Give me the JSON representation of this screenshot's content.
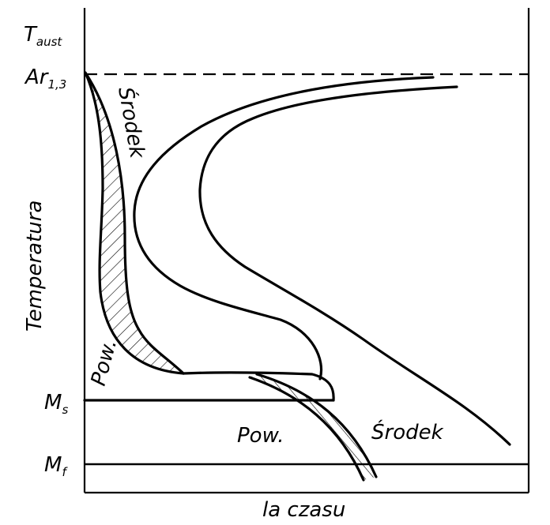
{
  "y_axis_label": "Temperatura",
  "x_axis_label": "la czasu",
  "levels": {
    "t_aust": {
      "main": "T",
      "sub": "aust"
    },
    "ar13": {
      "main": "Ar",
      "sub": "1,3"
    },
    "ms": {
      "main": "M",
      "sub": "s"
    },
    "mf": {
      "main": "M",
      "sub": "f"
    }
  },
  "curve_labels": {
    "srodek_top": "Środek",
    "srodek_bottom": "Środek",
    "pow_left": "Pow.",
    "pow_bottom": "Pow."
  },
  "line_styles": {
    "ar13_level": "dashed",
    "ms_level": "solid",
    "mf_level": "solid"
  },
  "colors": {
    "ink": "#000000",
    "background": "#ffffff"
  }
}
